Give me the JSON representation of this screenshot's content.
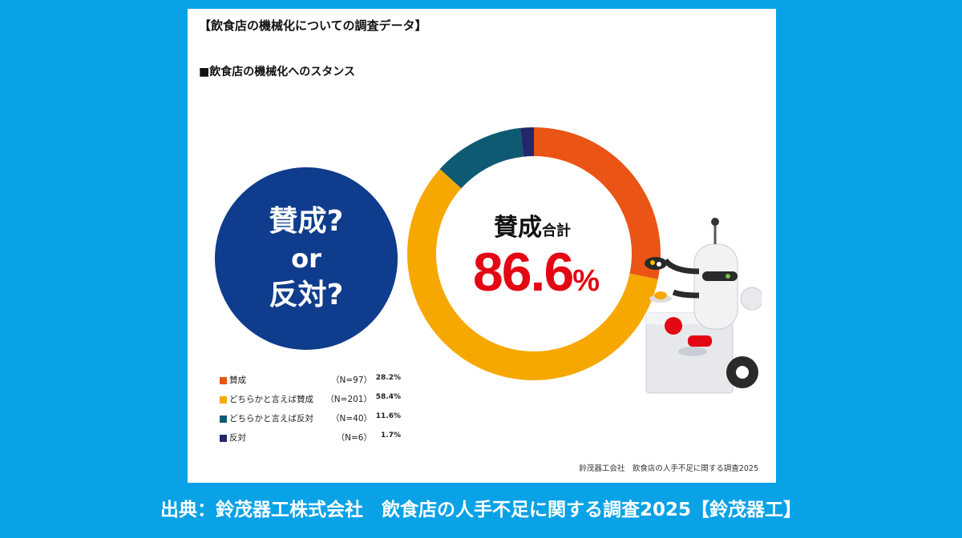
{
  "card": {
    "title": "【飲食店の機械化についての調査データ】",
    "subtitle": "■飲食店の機械化へのスタンス",
    "source": "鈴茂器工会社　飲食店の人手不足に関する調査2025"
  },
  "bubble": {
    "line1": "賛成?",
    "line2": "or",
    "line3": "反対?"
  },
  "center": {
    "label_main": "賛成",
    "label_sub": "合計",
    "value": "86.6",
    "unit": "%"
  },
  "chart_data": {
    "type": "pie",
    "categories": [
      "賛成",
      "どちらかと言えば賛成",
      "どちらかと言えば反対",
      "反対"
    ],
    "n_labels": [
      "（N=97）",
      "（N=201）",
      "（N=40）",
      "（N=6）"
    ],
    "values": [
      28.2,
      58.4,
      11.6,
      1.7
    ],
    "value_labels": [
      "28.2%",
      "58.4%",
      "11.6%",
      "1.7%"
    ],
    "colors": [
      "#ea5414",
      "#f6a800",
      "#0e5a73",
      "#23286a"
    ],
    "title": "飲食店の機械化へのスタンス",
    "legend": "bottom-left"
  },
  "footer": {
    "text": "出典：鈴茂器工株式会社　飲食店の人手不足に関する調査2025【鈴茂器工】"
  }
}
